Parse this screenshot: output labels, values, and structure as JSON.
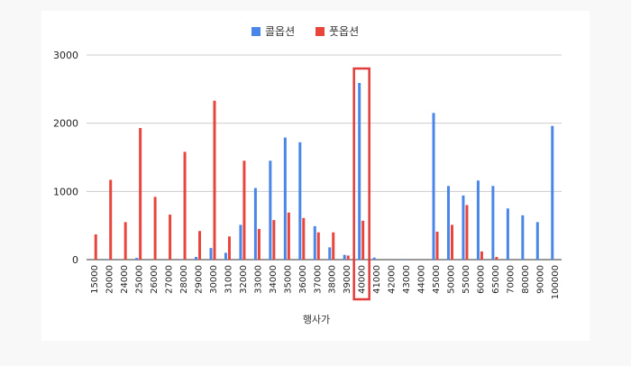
{
  "chart_data": {
    "type": "bar",
    "title": "",
    "xlabel": "행사가",
    "ylabel": "",
    "ylim": [
      0,
      3000
    ],
    "yticks": [
      "0",
      "1000",
      "2000",
      "3000"
    ],
    "grid": true,
    "legend_position": "top",
    "categories": [
      "15000",
      "20000",
      "24000",
      "25000",
      "26000",
      "27000",
      "28000",
      "29000",
      "30000",
      "31000",
      "32000",
      "33000",
      "34000",
      "35000",
      "36000",
      "37000",
      "38000",
      "39000",
      "40000",
      "41000",
      "42000",
      "43000",
      "44000",
      "45000",
      "50000",
      "55000",
      "60000",
      "65000",
      "70000",
      "80000",
      "90000",
      "100000"
    ],
    "series": [
      {
        "name": "콜옵션",
        "color": "#4a86e8",
        "values": [
          0,
          10,
          0,
          25,
          0,
          0,
          10,
          40,
          170,
          100,
          510,
          1050,
          1450,
          1790,
          1720,
          490,
          180,
          70,
          2590,
          30,
          0,
          10,
          0,
          2150,
          1080,
          940,
          1160,
          1080,
          750,
          650,
          550,
          1960
        ]
      },
      {
        "name": "풋옵션",
        "color": "#e8453c",
        "values": [
          370,
          1170,
          550,
          1930,
          920,
          660,
          1580,
          420,
          2330,
          340,
          1450,
          450,
          580,
          690,
          610,
          400,
          400,
          60,
          570,
          0,
          0,
          0,
          0,
          410,
          510,
          800,
          120,
          40,
          0,
          0,
          0,
          0
        ]
      }
    ],
    "highlight_category": "40000",
    "highlight_color": "#e03c3c"
  }
}
